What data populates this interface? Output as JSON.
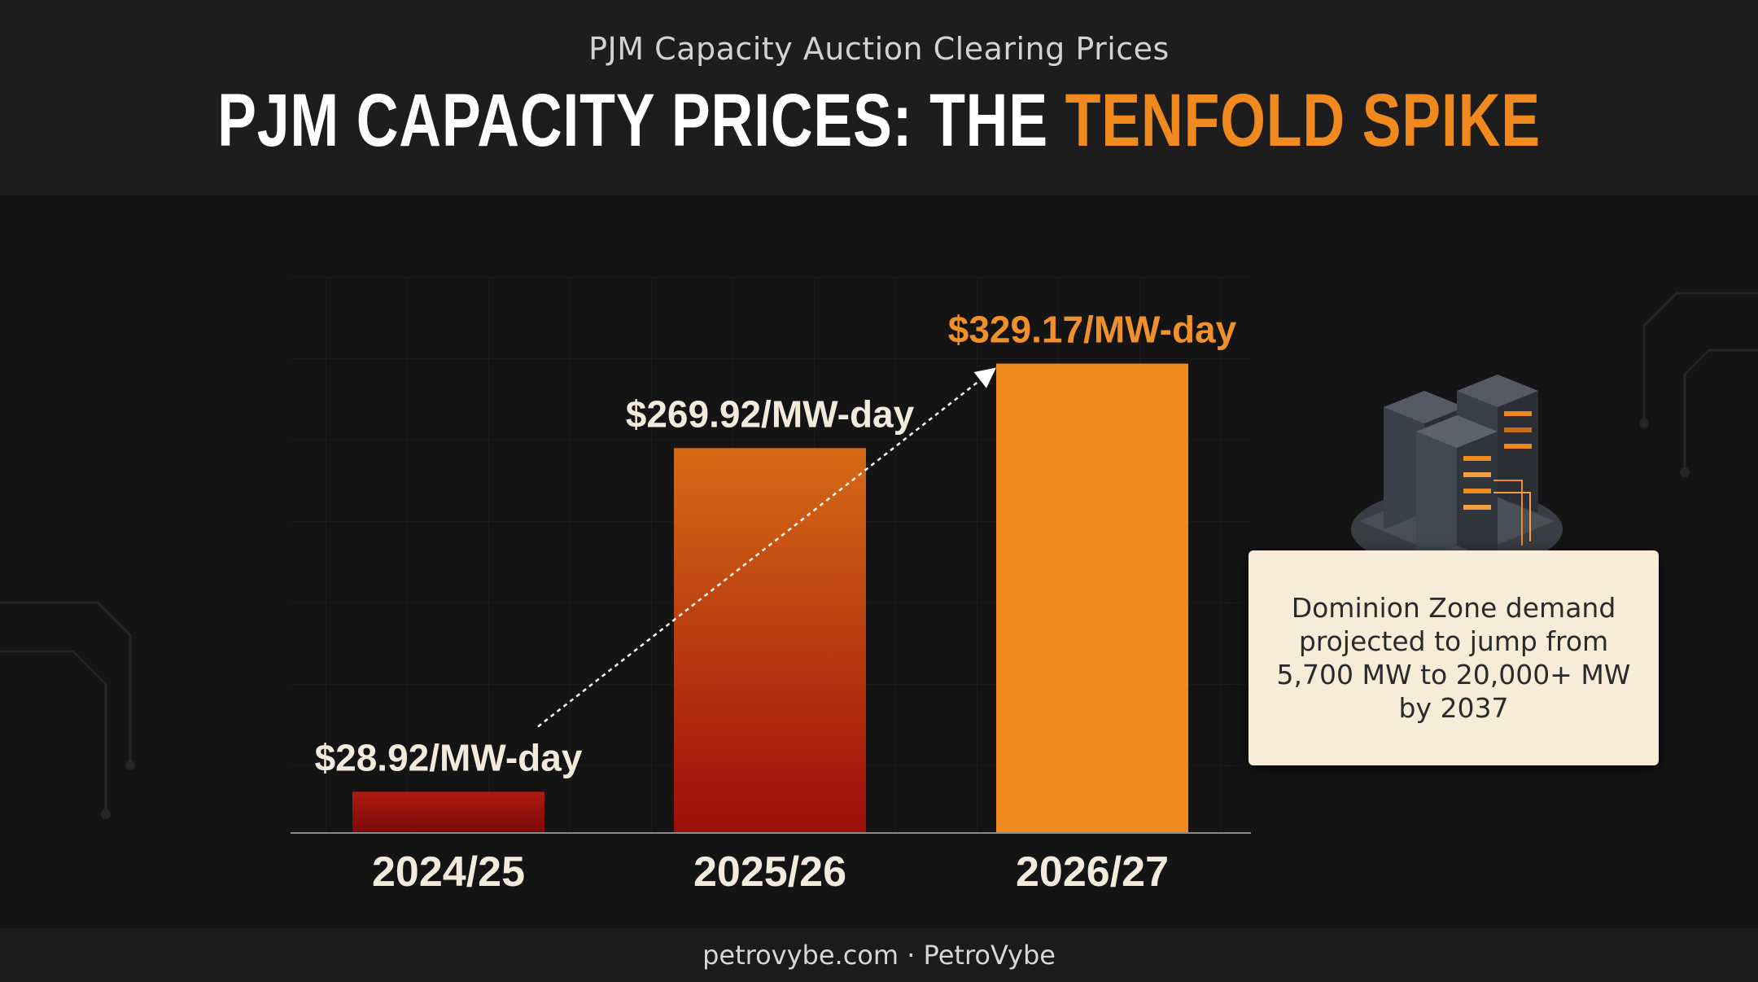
{
  "header": {
    "subtitle": "PJM Capacity Auction Clearing Prices",
    "title_main": "PJM CAPACITY PRICES: THE ",
    "title_accent": "TENFOLD SPIKE"
  },
  "chart_data": {
    "type": "bar",
    "categories": [
      "2024/25",
      "2025/26",
      "2026/27"
    ],
    "values": [
      28.92,
      269.92,
      329.17
    ],
    "data_labels": [
      "$28.92/MW-day",
      "$269.92/MW-day",
      "$329.17/MW-day"
    ],
    "unit": "$/MW-day",
    "title": "PJM Capacity Auction Clearing Prices",
    "xlabel": "",
    "ylabel": "",
    "ylim": [
      0,
      390
    ],
    "grid": true,
    "trend_arrow": true,
    "bar_colors": [
      [
        "#7a0a0a",
        "#b01a10"
      ],
      [
        "#9d0d0a",
        "#d66a16"
      ],
      [
        "#f08a1e",
        "#f08a1e"
      ]
    ],
    "label_colors": [
      "#f2eadb",
      "#f2eadb",
      "#f0902a"
    ]
  },
  "note": {
    "text": "Dominion Zone demand projected to jump from 5,700 MW to 20,000+ MW by 2037",
    "icon": "server-rack-icon"
  },
  "footer": {
    "text": "petrovybe.com · PetroVybe"
  },
  "colors": {
    "accent": "#f08a1e",
    "background": "#141414",
    "card": "#f7ecd8"
  }
}
